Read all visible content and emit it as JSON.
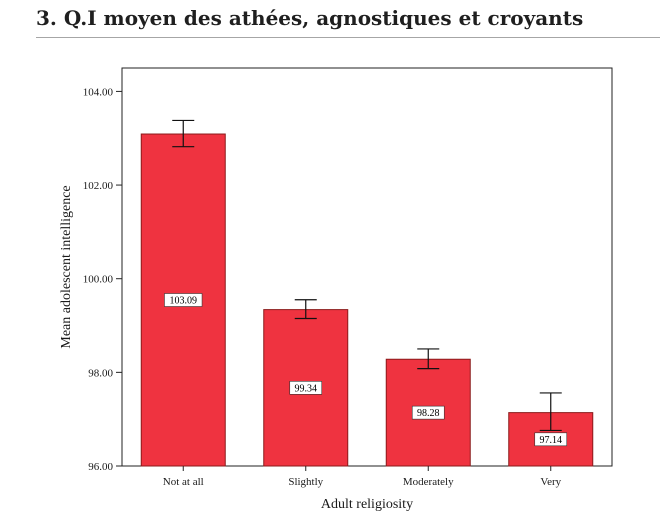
{
  "header": {
    "title": "3. Q.I moyen des athées, agnostiques et croyants"
  },
  "chart_data": {
    "type": "bar",
    "categories": [
      "Not at all",
      "Slightly",
      "Moderately",
      "Very"
    ],
    "values": [
      103.09,
      99.34,
      98.28,
      97.14
    ],
    "value_labels": [
      "103.09",
      "99.34",
      "98.28",
      "97.14"
    ],
    "error_bars": [
      {
        "low": 102.82,
        "high": 103.38
      },
      {
        "low": 99.15,
        "high": 99.55
      },
      {
        "low": 98.08,
        "high": 98.5
      },
      {
        "low": 96.76,
        "high": 97.56
      }
    ],
    "xlabel": "Adult religiosity",
    "ylabel": "Mean adolescent intelligence",
    "ylim": [
      96,
      104.5
    ],
    "yticks": [
      96,
      98,
      100,
      102,
      104
    ],
    "ytick_labels": [
      "96.00",
      "98.00",
      "100.00",
      "102.00",
      "104.00"
    ],
    "grid": false,
    "legend": "none",
    "bar_color": "#ef3340",
    "bar_edge_color": "#8b1a1a"
  }
}
